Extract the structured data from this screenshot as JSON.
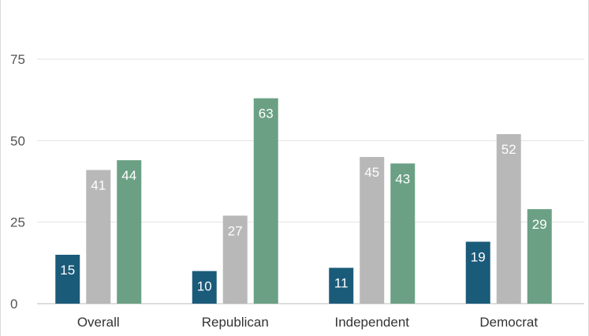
{
  "chart_data": {
    "type": "bar",
    "categories": [
      "Overall",
      "Republican",
      "Independent",
      "Democrat"
    ],
    "series": [
      {
        "values": [
          15,
          10,
          11,
          19
        ],
        "color": "#1b5b7a"
      },
      {
        "values": [
          41,
          27,
          45,
          52
        ],
        "color": "#b8b8b8"
      },
      {
        "values": [
          44,
          63,
          43,
          29
        ],
        "color": "#6ba084"
      }
    ],
    "y_ticks": [
      0,
      25,
      50,
      75
    ],
    "ylim": [
      0,
      75
    ],
    "grid": true,
    "title": "",
    "xlabel": "",
    "ylabel": ""
  }
}
